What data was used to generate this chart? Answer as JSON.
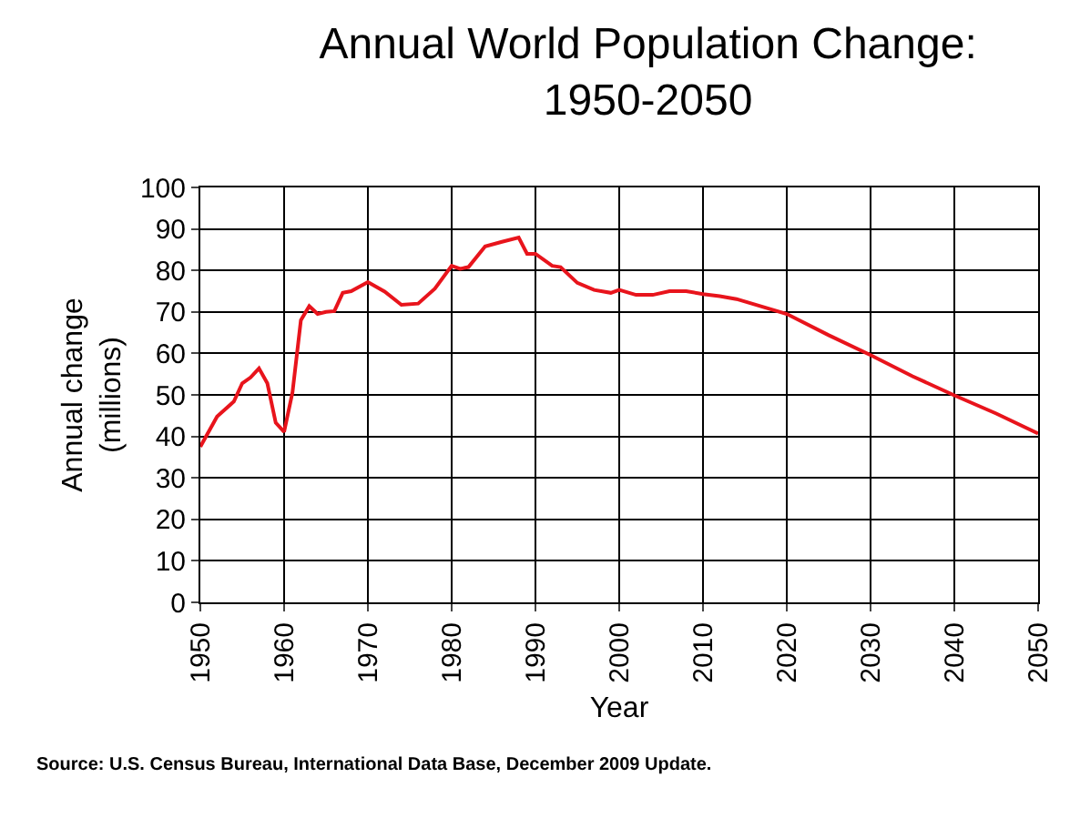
{
  "chart_data": {
    "type": "line",
    "title": "Annual World Population Change:\n1950-2050",
    "xlabel": "Year",
    "ylabel": "Annual change\n(millions)",
    "annotations": [
      "Source: U.S. Census Bureau, International Data Base, December 2009 Update."
    ],
    "x": [
      1950,
      1952,
      1954,
      1955,
      1956,
      1957,
      1958,
      1959,
      1960,
      1961,
      1962,
      1963,
      1964,
      1965,
      1966,
      1967,
      1968,
      1970,
      1972,
      1974,
      1976,
      1978,
      1980,
      1981,
      1982,
      1984,
      1986,
      1988,
      1989,
      1990,
      1992,
      1993,
      1995,
      1997,
      1999,
      2000,
      2002,
      2004,
      2006,
      2008,
      2010,
      2012,
      2014,
      2016,
      2020,
      2025,
      2030,
      2035,
      2040,
      2045,
      2050
    ],
    "series": [
      {
        "color": "#e8141c",
        "values": [
          37.5,
          44.8,
          48.4,
          52.8,
          54.2,
          56.4,
          52.8,
          43.3,
          41.1,
          50.6,
          68,
          71.4,
          69.5,
          70,
          70.2,
          74.6,
          75,
          77.2,
          74.9,
          71.7,
          72,
          75.6,
          81.1,
          80.4,
          80.8,
          85.8,
          86.9,
          87.9,
          84,
          84,
          81.1,
          80.8,
          77,
          75.3,
          74.6,
          75.3,
          74.1,
          74.1,
          75,
          75,
          74.3,
          73.8,
          73.1,
          71.9,
          69.5,
          64.4,
          59.6,
          54.5,
          49.9,
          45.5,
          40.7
        ]
      }
    ],
    "xlim": [
      1950,
      2050
    ],
    "xticks": [
      1950,
      1960,
      1970,
      1980,
      1990,
      2000,
      2010,
      2020,
      2030,
      2040,
      2050
    ],
    "ylim": [
      0,
      100
    ],
    "yticks": [
      0,
      10,
      20,
      30,
      40,
      50,
      60,
      70,
      80,
      90,
      100
    ],
    "grid": true,
    "marker": "none",
    "line_style": "solid"
  }
}
